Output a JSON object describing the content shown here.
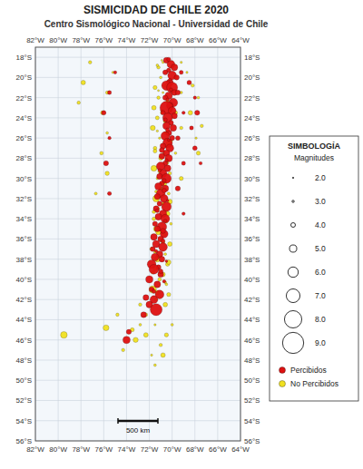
{
  "chart_data": {
    "type": "scatter",
    "title": "SISMICIDAD DE CHILE  2020",
    "subtitle": "Centro Sismológico Nacional - Universidad de Chile",
    "xlim": [
      -82,
      -64
    ],
    "ylim": [
      -56,
      -17
    ],
    "xticks": [
      {
        "value": -82,
        "label": "82°W"
      },
      {
        "value": -80,
        "label": "80°W"
      },
      {
        "value": -78,
        "label": "78°W"
      },
      {
        "value": -76,
        "label": "76°W"
      },
      {
        "value": -74,
        "label": "74°W"
      },
      {
        "value": -72,
        "label": "72°W"
      },
      {
        "value": -70,
        "label": "70°W"
      },
      {
        "value": -68,
        "label": "68°W"
      },
      {
        "value": -66,
        "label": "66°W"
      },
      {
        "value": -64,
        "label": "64°W"
      }
    ],
    "yticks": [
      {
        "value": -18,
        "label": "18°S"
      },
      {
        "value": -20,
        "label": "20°S"
      },
      {
        "value": -22,
        "label": "22°S"
      },
      {
        "value": -24,
        "label": "24°S"
      },
      {
        "value": -26,
        "label": "26°S"
      },
      {
        "value": -28,
        "label": "28°S"
      },
      {
        "value": -30,
        "label": "30°S"
      },
      {
        "value": -32,
        "label": "32°S"
      },
      {
        "value": -34,
        "label": "34°S"
      },
      {
        "value": -36,
        "label": "36°S"
      },
      {
        "value": -38,
        "label": "38°S"
      },
      {
        "value": -40,
        "label": "40°S"
      },
      {
        "value": -42,
        "label": "42°S"
      },
      {
        "value": -44,
        "label": "44°S"
      },
      {
        "value": -46,
        "label": "46°S"
      },
      {
        "value": -48,
        "label": "48°S"
      },
      {
        "value": -50,
        "label": "50°S"
      },
      {
        "value": -52,
        "label": "52°S"
      },
      {
        "value": -54,
        "label": "54°S"
      },
      {
        "value": -56,
        "label": "56°S"
      }
    ],
    "grid": true,
    "legend": "right",
    "legend_title": "SIMBOLOGÍA",
    "size_legend": {
      "title": "Magnitudes",
      "values": [
        2.0,
        3.0,
        4.0,
        5.0,
        6.0,
        7.0,
        8.0,
        9.0
      ],
      "value_labels": [
        "2.0",
        "3.0",
        "4.0",
        "5.0",
        "6.0",
        "7.0",
        "8.0",
        "9.0"
      ]
    },
    "annotations": [
      "500 km"
    ],
    "series": [
      {
        "name": "Percibidos",
        "color": "#dd1111",
        "x": [
          -70.5,
          -70.1,
          -69.8,
          -70.3,
          -70.0,
          -69.6,
          -70.2,
          -70.5,
          -70.0,
          -69.8,
          -70.3,
          -70.6,
          -69.9,
          -70.2,
          -70.5,
          -70.0,
          -69.8,
          -70.4,
          -70.1,
          -70.5,
          -69.9,
          -70.3,
          -70.6,
          -70.0,
          -70.4,
          -70.8,
          -70.2,
          -70.5,
          -70.9,
          -70.3,
          -70.6,
          -71.0,
          -70.4,
          -70.8,
          -71.1,
          -70.5,
          -70.9,
          -71.2,
          -70.6,
          -71.0,
          -71.3,
          -70.7,
          -71.1,
          -70.5,
          -71.4,
          -70.8,
          -71.2,
          -70.6,
          -71.5,
          -70.9,
          -71.3,
          -70.7,
          -71.6,
          -71.0,
          -71.4,
          -70.8,
          -71.7,
          -71.1,
          -71.5,
          -70.9,
          -71.8,
          -71.2,
          -71.6,
          -71.0,
          -72.0,
          -71.3,
          -71.8,
          -71.1,
          -72.3,
          -71.6,
          -72.0,
          -71.4,
          -72.5,
          -73.8,
          -74.0,
          -70.3,
          -70.6,
          -70.1,
          -70.8,
          -70.4,
          -70.9,
          -71.1,
          -70.7,
          -71.3,
          -70.8,
          -71.4,
          -71.0,
          -71.6,
          -68.5,
          -68.0,
          -67.8,
          -68.3,
          -68.0,
          -67.5,
          -69.2,
          -69.5,
          -69.0,
          -69.5,
          -69.0,
          -69.5,
          -69.0,
          -75.0,
          -75.5,
          -76.0,
          -75.5,
          -75.8,
          -75.5,
          -70.2,
          -70.4,
          -70.6,
          -70.3,
          -70.5,
          -70.7,
          -70.4,
          -70.6,
          -70.8,
          -70.5,
          -70.7
        ],
        "values": [
          -18.3,
          -18.7,
          -19.0,
          -19.3,
          -19.8,
          -20.0,
          -20.5,
          -20.8,
          -21.0,
          -21.5,
          -21.8,
          -22.0,
          -22.5,
          -22.8,
          -23.0,
          -23.3,
          -23.8,
          -24.0,
          -24.5,
          -24.8,
          -25.0,
          -25.5,
          -25.8,
          -26.0,
          -26.5,
          -26.8,
          -27.0,
          -27.5,
          -27.8,
          -28.0,
          -28.5,
          -28.8,
          -29.0,
          -29.5,
          -29.8,
          -30.0,
          -30.5,
          -30.8,
          -31.0,
          -31.5,
          -31.8,
          -32.0,
          -32.5,
          -32.8,
          -33.0,
          -33.5,
          -33.8,
          -34.0,
          -34.5,
          -34.8,
          -35.0,
          -35.5,
          -35.8,
          -36.0,
          -36.5,
          -36.8,
          -37.0,
          -37.5,
          -37.8,
          -38.0,
          -38.5,
          -38.8,
          -39.0,
          -39.5,
          -40.0,
          -40.5,
          -41.0,
          -41.5,
          -41.8,
          -42.0,
          -42.5,
          -43.0,
          -43.5,
          -45.2,
          -46.0,
          -18.2,
          -19.5,
          -21.2,
          -23.5,
          -25.2,
          -27.2,
          -29.2,
          -31.2,
          -33.2,
          -35.2,
          -37.2,
          -39.2,
          -41.2,
          -20.5,
          -22.0,
          -23.5,
          -25.0,
          -27.0,
          -28.5,
          -19.5,
          -21.5,
          -23.5,
          -26.0,
          -28.5,
          -31.0,
          -33.5,
          -19.5,
          -21.5,
          -23.5,
          -26.0,
          -28.5,
          -31.5,
          -20.2,
          -22.2,
          -24.2,
          -26.2,
          -28.2,
          -30.2,
          -32.2,
          -34.2,
          -36.2,
          -38.2,
          -40.2
        ],
        "sizes": [
          4.5,
          5.2,
          4.8,
          4.0,
          5.5,
          4.2,
          4.8,
          5.8,
          6.2,
          4.5,
          5.0,
          4.2,
          5.5,
          4.8,
          6.8,
          5.2,
          4.5,
          5.8,
          4.2,
          5.0,
          4.8,
          4.5,
          5.5,
          4.2,
          5.8,
          4.5,
          5.2,
          4.8,
          4.5,
          5.0,
          4.2,
          5.5,
          4.8,
          5.2,
          4.5,
          5.8,
          4.2,
          5.0,
          4.8,
          5.5,
          4.5,
          5.2,
          4.2,
          5.8,
          4.5,
          5.0,
          4.8,
          5.5,
          4.2,
          5.8,
          4.5,
          5.2,
          4.8,
          4.5,
          5.0,
          5.5,
          4.2,
          4.8,
          5.2,
          4.5,
          5.5,
          4.2,
          5.8,
          4.5,
          5.0,
          4.8,
          4.2,
          5.5,
          4.5,
          5.2,
          4.8,
          6.5,
          4.5,
          4.2,
          5.0,
          3.8,
          4.2,
          3.5,
          4.0,
          3.8,
          4.2,
          3.5,
          4.0,
          3.8,
          4.2,
          3.5,
          4.0,
          3.8,
          4.0,
          3.5,
          4.2,
          3.8,
          4.0,
          3.5,
          3.8,
          4.2,
          3.5,
          4.0,
          3.8,
          4.2,
          3.5,
          3.5,
          3.8,
          4.0,
          3.5,
          4.2,
          3.8,
          3.2,
          3.5,
          3.8,
          3.2,
          3.5,
          3.8,
          3.2,
          3.5,
          3.8,
          3.2,
          3.5
        ]
      },
      {
        "name": "No Percibidos",
        "color": "#f0e020",
        "x": [
          -70.8,
          -71.2,
          -70.5,
          -71.0,
          -70.3,
          -71.5,
          -70.8,
          -71.2,
          -70.4,
          -71.6,
          -70.9,
          -71.3,
          -70.2,
          -71.7,
          -70.6,
          -71.1,
          -70.3,
          -71.5,
          -70.7,
          -71.0,
          -70.4,
          -71.6,
          -70.2,
          -71.3,
          -70.7,
          -71.0,
          -70.3,
          -71.4,
          -70.8,
          -71.2,
          -70.4,
          -71.6,
          -70.1,
          -71.4,
          -70.7,
          -71.0,
          -70.2,
          -71.8,
          -70.6,
          -71.3,
          -70.4,
          -71.5,
          -70.8,
          -71.1,
          -70.5,
          -71.7,
          -70.3,
          -71.4,
          -70.6,
          -72.3,
          -72.8,
          -73.5,
          -73.2,
          -74.3,
          -71.8,
          -70.9,
          -71.3,
          -70.6,
          -71.2,
          -70.4,
          -70.9,
          -70.6,
          -71.3,
          -70.1,
          -71.5,
          -70.4,
          -71.1,
          -70.7,
          -71.4,
          -70.2,
          -71.6,
          -70.5,
          -71.2,
          -70.8,
          -71.5,
          -70.3,
          -71.7,
          -70.6,
          -71.3,
          -68.7,
          -68.2,
          -67.7,
          -68.4,
          -67.4,
          -67.9,
          -67.7,
          -69.2,
          -69.7,
          -69.2,
          -69.7,
          -69.2,
          -69.7,
          -69.2,
          -75.2,
          -75.7,
          -76.1,
          -75.7,
          -76.2,
          -75.7,
          -76.7,
          -74.8,
          -75.8,
          -79.5,
          -71.5,
          -72.8,
          -72.3,
          -77.2,
          -77.8,
          -78.2,
          -70.0,
          -70.5,
          -71.0,
          -70.8,
          -71.5
        ],
        "values": [
          -18.5,
          -19.0,
          -19.5,
          -20.0,
          -20.5,
          -21.0,
          -21.5,
          -22.0,
          -22.5,
          -23.0,
          -23.5,
          -24.0,
          -24.5,
          -25.0,
          -25.5,
          -26.0,
          -26.5,
          -27.0,
          -27.5,
          -28.0,
          -28.5,
          -29.0,
          -29.5,
          -30.0,
          -30.5,
          -31.0,
          -31.5,
          -32.0,
          -32.5,
          -33.0,
          -33.5,
          -34.0,
          -34.5,
          -35.0,
          -35.5,
          -36.0,
          -36.5,
          -37.0,
          -37.5,
          -38.0,
          -38.5,
          -39.0,
          -39.5,
          -40.0,
          -40.5,
          -41.0,
          -41.5,
          -42.0,
          -42.5,
          -43.5,
          -44.5,
          -45.0,
          -46.0,
          -47.0,
          -47.5,
          -18.3,
          -18.8,
          -20.8,
          -21.3,
          -22.3,
          -23.3,
          -24.3,
          -25.3,
          -26.3,
          -27.3,
          -28.3,
          -29.3,
          -30.3,
          -31.3,
          -32.3,
          -33.3,
          -34.3,
          -35.3,
          -36.3,
          -37.3,
          -38.3,
          -39.3,
          -40.3,
          -41.3,
          -19.5,
          -20.8,
          -22.0,
          -23.5,
          -24.8,
          -26.0,
          -27.5,
          -18.5,
          -20.0,
          -21.5,
          -23.5,
          -25.0,
          -27.5,
          -30.0,
          -19.5,
          -21.5,
          -23.5,
          -25.5,
          -27.5,
          -29.5,
          -31.5,
          -43.5,
          -44.8,
          -45.5,
          -44.5,
          -42.5,
          -45.5,
          -18.5,
          -20.5,
          -22.5,
          -44.5,
          -45.5,
          -46.5,
          -47.5,
          -48.5
        ],
        "sizes": [
          3.0,
          3.5,
          2.8,
          3.2,
          3.0,
          3.8,
          2.9,
          3.5,
          3.1,
          4.0,
          3.3,
          3.7,
          2.7,
          4.2,
          3.4,
          3.0,
          4.0,
          3.6,
          3.2,
          3.8,
          3.0,
          4.5,
          3.5,
          3.1,
          4.2,
          3.7,
          3.3,
          4.8,
          3.5,
          3.0,
          4.1,
          3.6,
          3.2,
          4.3,
          3.8,
          3.4,
          4.0,
          3.6,
          3.2,
          4.4,
          3.8,
          3.4,
          4.0,
          3.6,
          3.2,
          5.0,
          3.8,
          3.4,
          4.0,
          3.6,
          3.2,
          3.8,
          4.2,
          3.5,
          3.0,
          2.8,
          3.2,
          3.5,
          2.9,
          3.6,
          3.2,
          3.8,
          3.0,
          3.4,
          3.7,
          3.1,
          3.5,
          3.9,
          3.3,
          4.1,
          3.6,
          3.2,
          4.4,
          3.7,
          3.3,
          4.0,
          3.6,
          3.2,
          3.9,
          3.0,
          3.5,
          3.2,
          4.0,
          3.5,
          3.0,
          3.8,
          3.0,
          3.5,
          3.2,
          3.8,
          3.5,
          3.2,
          3.8,
          3.0,
          3.5,
          3.8,
          3.2,
          3.6,
          3.9,
          3.3,
          3.5,
          4.5,
          4.8,
          3.0,
          3.5,
          4.0,
          3.5,
          4.0,
          3.5,
          3.2,
          3.8,
          3.5,
          4.0,
          3.2
        ]
      }
    ]
  }
}
